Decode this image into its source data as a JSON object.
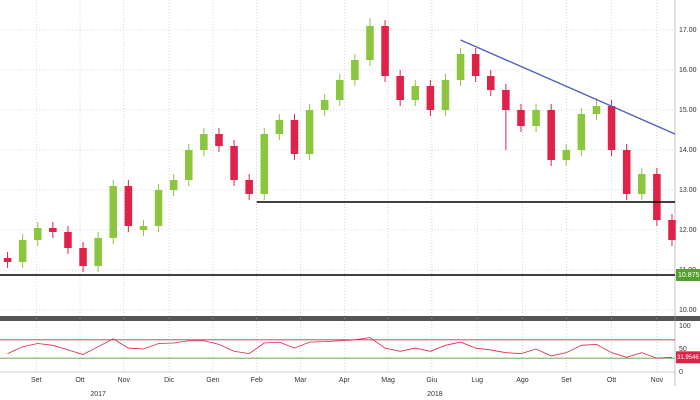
{
  "chart_data": {
    "type": "candlestick",
    "up_color": "#8cc63f",
    "down_color": "#e0224a",
    "xlim": [
      -0.5,
      44.2
    ],
    "xticks": [
      {
        "value": 1.9,
        "label": "Set"
      },
      {
        "value": 4.8,
        "label": "Ott"
      },
      {
        "value": 7.7,
        "label": "Nov"
      },
      {
        "value": 10.7,
        "label": "Dic"
      },
      {
        "value": 13.6,
        "label": "Gen"
      },
      {
        "value": 16.5,
        "label": "Feb"
      },
      {
        "value": 19.4,
        "label": "Mar"
      },
      {
        "value": 22.3,
        "label": "Apr"
      },
      {
        "value": 25.2,
        "label": "Mag"
      },
      {
        "value": 28.1,
        "label": "Giu"
      },
      {
        "value": 31.1,
        "label": "Lug"
      },
      {
        "value": 34.1,
        "label": "Ago"
      },
      {
        "value": 37.0,
        "label": "Set"
      },
      {
        "value": 40.0,
        "label": "Ott"
      },
      {
        "value": 43.0,
        "label": "Nov"
      }
    ],
    "year_labels": [
      {
        "value": 6,
        "label": "2017"
      },
      {
        "value": 28.3,
        "label": "2018"
      }
    ],
    "ylim": [
      9.8,
      17.7
    ],
    "yticks": [
      {
        "value": 10,
        "label": "10.00"
      },
      {
        "value": 11,
        "label": "11.00"
      },
      {
        "value": 12,
        "label": "12.00"
      },
      {
        "value": 13,
        "label": "13.00"
      },
      {
        "value": 14,
        "label": "14.00"
      },
      {
        "value": 15,
        "label": "15.00"
      },
      {
        "value": 16,
        "label": "16.00"
      },
      {
        "value": 17,
        "label": "17.00"
      }
    ],
    "grid": true,
    "open": [
      11.3,
      11.2,
      11.75,
      12.05,
      11.95,
      11.55,
      11.1,
      11.8,
      13.1,
      12.0,
      12.1,
      13.0,
      13.25,
      14.0,
      14.4,
      14.1,
      13.25,
      12.9,
      14.4,
      14.75,
      13.9,
      15.0,
      15.25,
      15.75,
      16.25,
      17.1,
      15.85,
      15.25,
      15.6,
      15.0,
      15.75,
      16.4,
      15.85,
      15.5,
      15.0,
      14.6,
      15.0,
      13.75,
      14.0,
      14.9,
      15.1,
      14.0,
      12.9,
      13.4,
      12.25
    ],
    "high": [
      11.45,
      11.9,
      12.2,
      12.2,
      12.1,
      11.7,
      11.95,
      13.25,
      13.25,
      12.25,
      13.15,
      13.4,
      14.15,
      14.55,
      14.55,
      14.25,
      13.4,
      14.55,
      14.9,
      14.9,
      15.15,
      15.4,
      15.9,
      16.4,
      17.3,
      17.25,
      16.0,
      15.75,
      15.75,
      15.9,
      16.55,
      16.55,
      16.0,
      15.65,
      15.15,
      15.15,
      15.15,
      14.15,
      15.05,
      15.3,
      15.25,
      14.15,
      13.55,
      13.55,
      12.4
    ],
    "low": [
      11.05,
      11.05,
      11.6,
      11.8,
      11.4,
      10.95,
      10.95,
      11.65,
      11.95,
      11.85,
      11.95,
      12.85,
      13.1,
      13.85,
      13.95,
      13.1,
      12.75,
      12.75,
      14.25,
      13.75,
      13.75,
      14.85,
      15.1,
      15.6,
      16.1,
      15.7,
      15.1,
      15.1,
      14.85,
      14.85,
      15.6,
      15.7,
      15.35,
      14.0,
      14.45,
      14.45,
      13.6,
      13.6,
      13.85,
      14.75,
      13.85,
      12.75,
      12.75,
      12.1,
      11.6
    ],
    "close": [
      11.2,
      11.75,
      12.05,
      11.95,
      11.55,
      11.1,
      11.8,
      13.1,
      12.1,
      12.1,
      13.0,
      13.25,
      14.0,
      14.4,
      14.1,
      13.25,
      12.9,
      14.4,
      14.75,
      13.9,
      15.0,
      15.25,
      15.75,
      16.25,
      17.1,
      15.85,
      15.25,
      15.6,
      15.0,
      15.75,
      16.4,
      15.85,
      15.5,
      15.0,
      14.6,
      15.0,
      13.75,
      14.0,
      14.9,
      15.1,
      14.0,
      12.9,
      13.4,
      12.25,
      11.75
    ],
    "levels": [
      {
        "value": 10.875,
        "from": -0.5,
        "to": 44.2,
        "color": "#000000"
      },
      {
        "value": 12.7,
        "from": 16.5,
        "to": 44.2,
        "color": "#000000"
      }
    ],
    "trendline": {
      "x": [
        30.0,
        44.2
      ],
      "y": [
        16.75,
        14.4
      ],
      "color": "#5060c0"
    },
    "price_label": 10.875,
    "price_label_color": "#55a030",
    "rsi": {
      "values": [
        40,
        55,
        62,
        58,
        48,
        38,
        55,
        72,
        52,
        50,
        62,
        63,
        68,
        68,
        60,
        45,
        40,
        63,
        65,
        52,
        65,
        66,
        68,
        70,
        75,
        52,
        45,
        52,
        45,
        58,
        65,
        52,
        48,
        42,
        40,
        50,
        35,
        42,
        58,
        60,
        42,
        32,
        42,
        30,
        31.9546
      ],
      "color": "#e0224a",
      "ylim": [
        0,
        100
      ],
      "yticks": [
        0,
        50,
        100
      ],
      "levels": [
        {
          "value": 70,
          "color": "#e0224a"
        },
        {
          "value": 30,
          "color": "#55a030"
        }
      ],
      "label": 31.9546
    }
  }
}
